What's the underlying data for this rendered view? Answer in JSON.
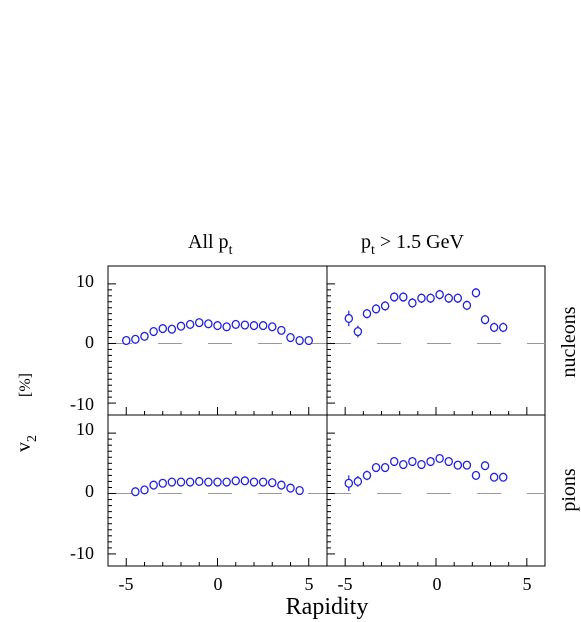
{
  "figure": {
    "col_titles": [
      {
        "main": "All p",
        "sub": "t",
        "rest": ""
      },
      {
        "main": "p",
        "sub": "t",
        "rest": " > 1.5 GeV"
      }
    ],
    "row_labels": [
      "nucleons",
      "pions"
    ],
    "ylabel": {
      "main": "v",
      "sub": "2",
      "unit": "[%]"
    },
    "xlabel": "Rapidity",
    "yticks": [
      "10",
      "0",
      "-10"
    ],
    "xticks": [
      "-5",
      "0",
      "5"
    ]
  },
  "colors": {
    "marker": "#1f1fe6",
    "dash": "#999999",
    "axis": "#000000"
  },
  "chart_data": [
    {
      "type": "scatter",
      "panel": "All pt / nucleons",
      "xlim": [
        -6,
        6
      ],
      "ylim": [
        -12,
        13
      ],
      "x": [
        -5.0,
        -4.5,
        -4.0,
        -3.5,
        -3.0,
        -2.5,
        -2.0,
        -1.5,
        -1.0,
        -0.5,
        0.0,
        0.5,
        1.0,
        1.5,
        2.0,
        2.5,
        3.0,
        3.5,
        4.0,
        4.5,
        5.0
      ],
      "y": [
        0.5,
        0.7,
        1.2,
        2.0,
        2.5,
        2.4,
        2.9,
        3.2,
        3.5,
        3.3,
        3.0,
        2.8,
        3.2,
        3.1,
        3.0,
        3.0,
        2.8,
        2.2,
        1.0,
        0.5,
        0.5
      ],
      "yerr": [
        0.2,
        0.2,
        0.2,
        0.2,
        0.2,
        0.2,
        0.2,
        0.2,
        0.2,
        0.2,
        0.2,
        0.2,
        0.2,
        0.2,
        0.2,
        0.2,
        0.2,
        0.2,
        0.2,
        0.2,
        0.2
      ]
    },
    {
      "type": "scatter",
      "panel": "pt > 1.5 GeV / nucleons",
      "xlim": [
        -6,
        6
      ],
      "ylim": [
        -12,
        13
      ],
      "x": [
        -4.8,
        -4.3,
        -3.8,
        -3.3,
        -2.8,
        -2.3,
        -1.8,
        -1.3,
        -0.8,
        -0.3,
        0.2,
        0.7,
        1.2,
        1.7,
        2.2,
        2.7,
        3.2,
        3.7
      ],
      "y": [
        4.2,
        2.0,
        5.0,
        5.8,
        6.3,
        7.8,
        7.8,
        6.8,
        7.6,
        7.6,
        8.2,
        7.6,
        7.6,
        6.4,
        8.5,
        4.0,
        2.7,
        2.7
      ],
      "yerr": [
        1.3,
        1.0,
        0.8,
        0.8,
        0.8,
        0.8,
        0.8,
        0.8,
        0.8,
        0.8,
        0.8,
        0.8,
        0.8,
        0.8,
        0.8,
        0.8,
        0.8,
        0.8
      ]
    },
    {
      "type": "scatter",
      "panel": "All pt / pions",
      "xlim": [
        -6,
        6
      ],
      "ylim": [
        -12,
        13
      ],
      "x": [
        -4.5,
        -4.0,
        -3.5,
        -3.0,
        -2.5,
        -2.0,
        -1.5,
        -1.0,
        -0.5,
        0.0,
        0.5,
        1.0,
        1.5,
        2.0,
        2.5,
        3.0,
        3.5,
        4.0,
        4.5
      ],
      "y": [
        0.3,
        0.6,
        1.4,
        1.7,
        1.9,
        1.9,
        1.9,
        2.0,
        1.9,
        1.9,
        1.9,
        2.1,
        2.1,
        1.9,
        1.9,
        1.8,
        1.4,
        0.9,
        0.5
      ],
      "yerr": [
        0.2,
        0.2,
        0.2,
        0.2,
        0.2,
        0.2,
        0.2,
        0.2,
        0.2,
        0.2,
        0.2,
        0.2,
        0.2,
        0.2,
        0.2,
        0.2,
        0.2,
        0.2,
        0.2
      ]
    },
    {
      "type": "scatter",
      "panel": "pt > 1.5 GeV / pions",
      "xlim": [
        -6,
        6
      ],
      "ylim": [
        -12,
        13
      ],
      "x": [
        -4.8,
        -4.3,
        -3.8,
        -3.3,
        -2.8,
        -2.3,
        -1.8,
        -1.3,
        -0.8,
        -0.3,
        0.2,
        0.7,
        1.2,
        1.7,
        2.2,
        2.7,
        3.2,
        3.7
      ],
      "y": [
        1.7,
        2.0,
        3.0,
        4.3,
        4.3,
        5.3,
        4.8,
        5.3,
        4.8,
        5.3,
        5.8,
        5.3,
        4.7,
        4.7,
        3.0,
        4.6,
        2.7,
        2.7
      ],
      "yerr": [
        1.3,
        0.9,
        0.8,
        0.7,
        0.7,
        0.7,
        0.7,
        0.7,
        0.7,
        0.7,
        0.7,
        0.7,
        0.7,
        0.7,
        0.7,
        0.7,
        0.7,
        0.7
      ]
    }
  ]
}
